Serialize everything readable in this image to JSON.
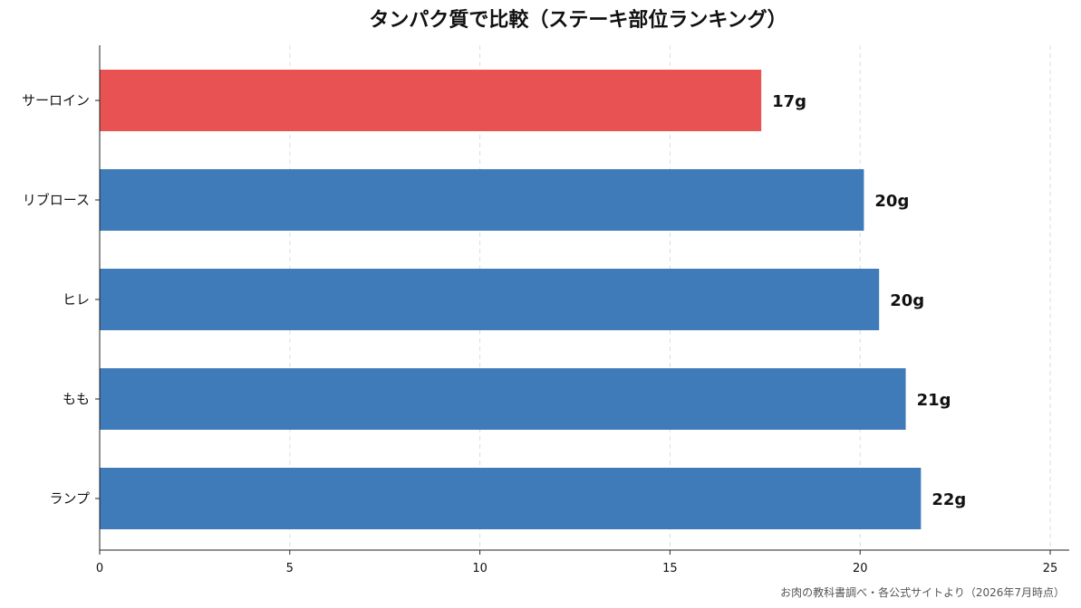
{
  "chart_data": {
    "type": "bar",
    "orientation": "horizontal",
    "title": "タンパク質で比較（ステーキ部位ランキング）",
    "categories": [
      "サーロイン",
      "リブロース",
      "ヒレ",
      "もも",
      "ランプ"
    ],
    "values": [
      17.4,
      20.1,
      20.5,
      21.2,
      21.6
    ],
    "data_labels": [
      "17g",
      "20g",
      "20g",
      "21g",
      "22g"
    ],
    "bar_colors": [
      "#e85252",
      "#3f7bb8",
      "#3f7bb8",
      "#3f7bb8",
      "#3f7bb8"
    ],
    "xlim": [
      0,
      25.5
    ],
    "xticks": [
      "0",
      "5",
      "10",
      "15",
      "20",
      "25"
    ],
    "xlabel": "",
    "ylabel": "",
    "grid": "vertical dashed",
    "source_note": "お肉の教科書調べ・各公式サイトより（2026年7月時点）"
  }
}
